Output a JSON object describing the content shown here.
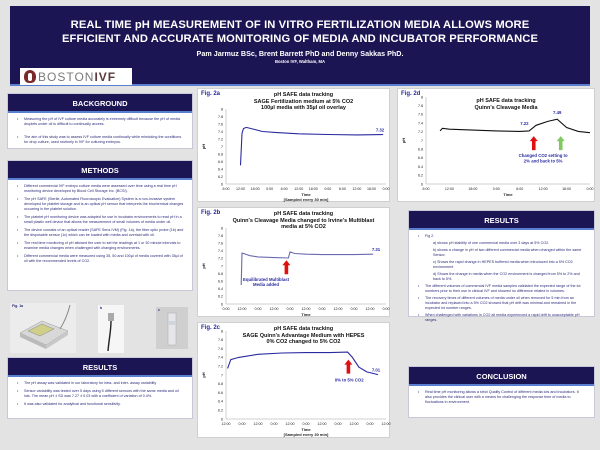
{
  "header": {
    "title_line1": "REAL TIME  pH MEASUREMENT OF IN VITRO FERTILIZATION MEDIA ALLOWS MORE",
    "title_line2": "EFFICIENT AND ACCURATE MONITORING OF MEDIA AND INCUBATOR PERFORMANCE",
    "authors": "Pam  Jarmuz BSc, Brent Barrett PhD and Denny Sakkas PhD.",
    "affiliation": "Boston IVF, Waltham, MA",
    "logo_light": "BOSTON",
    "logo_bold": "IVF"
  },
  "background": {
    "heading": "BACKGROUND",
    "items": [
      "Measuring the pH of IVF culture media accurately is extremely difficult because the pH of media droplets under oil is difficult to continually access.",
      "The aim of this study was to assess IVF culture media continually while mimicking the conditions for drop culture, used routinely in IVF for culturing embryos."
    ]
  },
  "methods": {
    "heading": "METHODS",
    "items": [
      "Different commercial IVF embryo culture media were assessed over time using a real time pH monitoring device developed by Blood Cell Storage Inc. (BCSI).",
      "The pH SAFE (Sterile, Automated Fluoroscopic Evaluation) System is a non-invasive system developed for platelet storage and is an optical pH sensor that interprets the biochemical changes occurring in the platelet solution.",
      "The platelet pH monitoring device was adapted for use in incubator environments to read pH in a small plastic well device that allows the measurement of small volumes of media under oil.",
      "The device consists of an optical reader (SAFE Sens IVM) (Fig. 1a), the fiber optic probe (1b) and the disposable sensor (1c) which can be loaded with media and overlaid with oil.",
      "The real time monitoring of pH allowed the user to set the readings at 1 or 30 minute intervals to examine media changes when challenged with changing environments.",
      "Different commercial media were measured using 35, 50 and 100µl of media covered with 35µl of oil with the recommended levels of CO2."
    ]
  },
  "figure1": {
    "a_label": "Fig. 1a",
    "b_label": "b",
    "c_label": "c"
  },
  "results_left": {
    "heading": "RESULTS",
    "items": [
      "The pH assay was validated in our laboratory for intra- and inter- assay variability",
      "Sensor variability was tested over 5 days using 5 different sensors with the same media and oil lots. The mean pH ± SD was 7.27 ± 0.03 with a coefficient of variation of 0.4%.",
      "It was also validated for analytical and functional sensitivity."
    ]
  },
  "results_right": {
    "heading": "RESULTS",
    "fig_intro": "Fig 2.",
    "sub_items": [
      "a) shows pH stability of one commercial media over 3 days at 5% CO2.",
      "b) shows a change in pH of two different commercial media when changed within the same Sensor.",
      "c) Shows the rapid change in HEPES buffered media when introduced into a 5% CO2 environment",
      "d) Shows the change in media when the CO2 environment is changed from 5% to 2% and back to 5%."
    ],
    "items": [
      "The different volumes of commercial IVF media samples validated the expected range of the lot numbers prior to their use in clinical IVF and showed no difference related in volumes.",
      "The recovery times of different volumes of media under oil when removed for 5 min from an incubator and replaced into a 5% CO2 showed that pH drift was minimal and remained in the expected lot number ranges.",
      "When challenged with variations in CO2 all media experienced a rapid drift to unacceptable pH ranges."
    ]
  },
  "conclusion": {
    "heading": "CONCLUSION",
    "items": [
      "Real time pH monitoring allows a strict Quality Control of different media lots and incubators. It also provides the clinical user with a means for challenging the response time of media to fluctuations in environment."
    ]
  },
  "chart_data": [
    {
      "id": "fig2a",
      "type": "line",
      "fig_label": "Fig. 2a",
      "title": "pH SAFE data tracking",
      "subtitle": "SAGE Fertilization medium at 5% CO2",
      "subtitle2": "100µl media with 35µl oil overlay",
      "xlabel": "Time",
      "xlabel2": "[Sampled every 30 min]",
      "ylabel": "pH",
      "ylim": [
        6,
        8
      ],
      "yticks": [
        "8",
        "7.8",
        "7.6",
        "7.4",
        "7.2",
        "7",
        "6.8",
        "6.6",
        "6.4",
        "6.2",
        "6"
      ],
      "xticks": [
        "6:00",
        "12:00",
        "18:00",
        "0:00",
        "6:00",
        "12:00",
        "18:00",
        "0:00",
        "6:00",
        "12:00",
        "18:00",
        "0:00"
      ],
      "series": [
        {
          "name": "pH",
          "color": "#2a2aa0",
          "x": [
            1.0,
            1.05,
            1.1,
            1.2,
            1.4,
            1.8,
            2.5,
            3.5,
            5,
            7,
            9,
            10.8
          ],
          "y": [
            6.5,
            6.95,
            7.35,
            7.48,
            7.51,
            7.47,
            7.4,
            7.37,
            7.34,
            7.32,
            7.31,
            7.32
          ]
        }
      ],
      "annotations": [
        {
          "text": "7.32"
        }
      ]
    },
    {
      "id": "fig2b",
      "type": "line",
      "fig_label": "Fig. 2b",
      "title": "pH SAFE data tracking",
      "subtitle": "Quinn's Cleavage Media changed to Irvine's Multiblast",
      "subtitle2": "media at 5% CO2",
      "xlabel": "Time",
      "ylabel": "pH",
      "ylim": [
        6,
        8
      ],
      "yticks": [
        "8",
        "7.8",
        "7.6",
        "7.4",
        "7.2",
        "7",
        "6.8",
        "6.6",
        "6.4",
        "6.2",
        "6"
      ],
      "xticks": [
        "0:00",
        "12:00",
        "0:00",
        "12:00",
        "0:00",
        "12:00",
        "0:00",
        "12:00",
        "0:00",
        "12:00",
        "0:00"
      ],
      "series": [
        {
          "name": "pH",
          "color": "#6a6ab0",
          "x": [
            0.95,
            1.0,
            1.1,
            1.5,
            2,
            3,
            3.9,
            4.0,
            4.3,
            5,
            6,
            8,
            9.2
          ],
          "y": [
            6.5,
            7.34,
            7.33,
            7.27,
            7.24,
            7.22,
            7.21,
            7.37,
            7.33,
            7.31,
            7.3,
            7.3,
            7.31
          ]
        }
      ],
      "annotations": [
        {
          "text": "7.31"
        },
        {
          "text": "Equilibrated Multiblast"
        },
        {
          "text": "Media added"
        }
      ]
    },
    {
      "id": "fig2c",
      "type": "line",
      "fig_label": "Fig. 2c",
      "title": "pH SAFE data tracking",
      "subtitle": "SAGE Quinn's Advantage Medium with HEPES",
      "subtitle2": "0% CO2 changed to 5% CO2",
      "xlabel": "Time",
      "xlabel2": "[Sampled every 30 min]",
      "ylabel": "pH",
      "ylim": [
        6,
        8
      ],
      "yticks": [
        "8",
        "7.8",
        "7.6",
        "7.4",
        "7.2",
        "7",
        "6.8",
        "6.6",
        "6.4",
        "6.2",
        "6"
      ],
      "xticks": [
        "12:00",
        "0:00",
        "12:00",
        "0:00",
        "12:00",
        "0:00",
        "12:00",
        "0:00",
        "12:00",
        "0:00",
        "12:00"
      ],
      "series": [
        {
          "name": "pH",
          "color": "#2a2aa0",
          "x": [
            0.1,
            0.3,
            0.8,
            2,
            3.5,
            5,
            6.5,
            7.6,
            7.9,
            8.3,
            8.8,
            9.5
          ],
          "y": [
            7.15,
            7.35,
            7.4,
            7.47,
            7.5,
            7.51,
            7.51,
            7.52,
            7.4,
            7.18,
            7.07,
            7.01
          ]
        }
      ],
      "annotations": [
        {
          "text": "7.01"
        },
        {
          "text": "0% to 5% CO2"
        }
      ]
    },
    {
      "id": "fig2d",
      "type": "line",
      "fig_label": "Fig. 2d",
      "title": "pH SAFE data tracking",
      "subtitle": "Quinn's Cleavage Media",
      "xlabel": "Time",
      "ylabel": "pH",
      "ylim": [
        6,
        8
      ],
      "yticks": [
        "8",
        "7.8",
        "7.6",
        "7.4",
        "7.2",
        "7",
        "6.8",
        "6.6",
        "6.4",
        "6.2",
        "6"
      ],
      "xticks": [
        "6:00",
        "12:00",
        "18:00",
        "0:00",
        "6:00",
        "12:00",
        "18:00",
        "0:00"
      ],
      "series": [
        {
          "name": "pH",
          "color": "#111111",
          "x": [
            0.6,
            0.7,
            1,
            2,
            3,
            4,
            4.4,
            4.7,
            5.2,
            5.6,
            6.0,
            6.5,
            7
          ],
          "y": [
            7.22,
            7.28,
            7.26,
            7.24,
            7.22,
            7.21,
            7.22,
            7.35,
            7.44,
            7.49,
            7.3,
            7.21,
            7.18
          ]
        }
      ],
      "annotations": [
        {
          "text": "7.22"
        },
        {
          "text": "7.49"
        },
        {
          "text": "Changed CO2 setting to"
        },
        {
          "text": "2% and back to 5%"
        }
      ]
    }
  ]
}
